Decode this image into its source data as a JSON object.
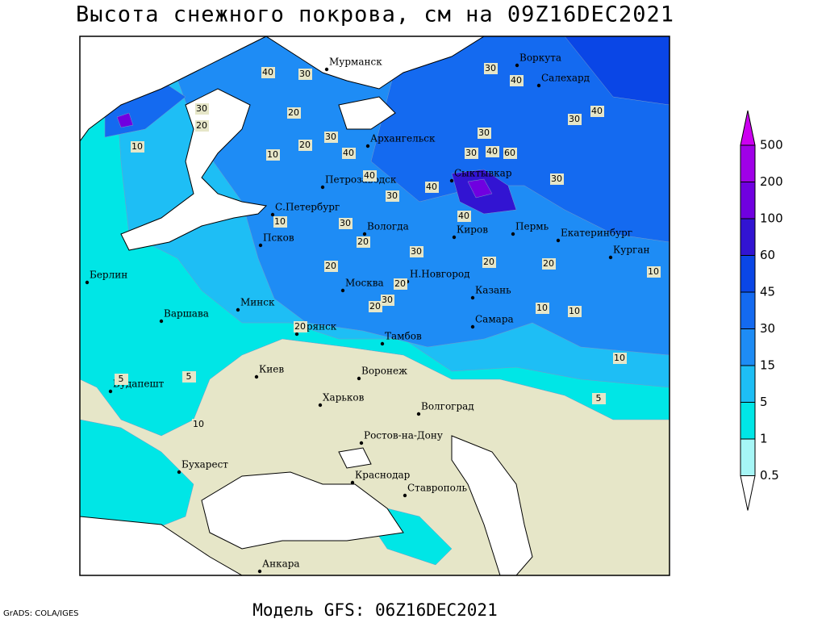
{
  "title": "Высота снежного покрова, см на 09Z16DEC2021",
  "footer": {
    "model": "Модель GFS: 06Z16DEC2021",
    "credit": "GrADS: COLA/IGES"
  },
  "legend": {
    "levels": [
      0.5,
      1,
      5,
      15,
      30,
      45,
      60,
      100,
      200,
      500
    ],
    "colors": [
      "#ffffff",
      "#a6f6f6",
      "#00e6e6",
      "#1ebef5",
      "#1e8cf5",
      "#146af0",
      "#0a46e6",
      "#3214d2",
      "#7000e0",
      "#a000e8",
      "#cc00f0"
    ]
  },
  "cities": [
    "Мурманск",
    "Воркута",
    "Салехард",
    "Архангельск",
    "Петрозаводск",
    "Сыктывкар",
    "С.Петербург",
    "Вологда",
    "Киров",
    "Пермь",
    "Екатеринбург",
    "Псков",
    "Курган",
    "Н.Новгород",
    "Берлин",
    "Москва",
    "Казань",
    "Минск",
    "Варшава",
    "Самара",
    "Брянск",
    "Тамбов",
    "Киев",
    "Воронеж",
    "Будапешт",
    "Харьков",
    "Волгоград",
    "Ростов-на-Дону",
    "Бухарест",
    "Краснодар",
    "Ставрополь",
    "Анкара"
  ],
  "contour_labels": [
    40,
    30,
    30,
    40,
    30,
    40,
    30,
    20,
    20,
    10,
    20,
    10,
    30,
    30,
    30,
    40,
    60,
    40,
    30,
    40,
    40,
    20,
    10,
    30,
    40,
    30,
    30,
    20,
    20,
    20,
    20,
    20,
    10,
    10,
    10,
    10,
    5,
    5,
    5,
    10,
    20,
    30
  ]
}
